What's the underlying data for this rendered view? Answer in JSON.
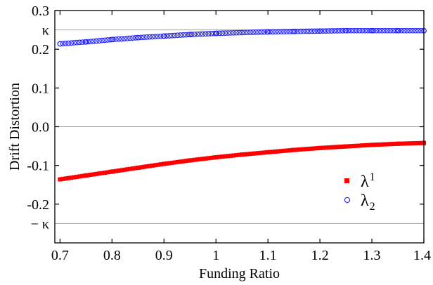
{
  "chart_data": {
    "type": "scatter",
    "title": "",
    "xlabel": "Funding Ratio",
    "ylabel": "Drift Distortion",
    "xlim": [
      0.69,
      1.4
    ],
    "ylim": [
      -0.3,
      0.3
    ],
    "x_ticks": [
      {
        "value": 0.7,
        "label": "0.7"
      },
      {
        "value": 0.8,
        "label": "0.8"
      },
      {
        "value": 0.9,
        "label": "0.9"
      },
      {
        "value": 1.0,
        "label": "1"
      },
      {
        "value": 1.1,
        "label": "1.1"
      },
      {
        "value": 1.2,
        "label": "1.2"
      },
      {
        "value": 1.3,
        "label": "1.3"
      },
      {
        "value": 1.4,
        "label": "1.4"
      }
    ],
    "y_ticks": [
      {
        "value": 0.3,
        "label": "0.3"
      },
      {
        "value": 0.2,
        "label": "0.2"
      },
      {
        "value": 0.1,
        "label": "0.1"
      },
      {
        "value": 0.0,
        "label": "0.0"
      },
      {
        "value": -0.1,
        "label": "-0.1"
      },
      {
        "value": -0.2,
        "label": "-0.2"
      }
    ],
    "reference_lines": [
      {
        "value": 0.25,
        "label": "κ"
      },
      {
        "value": 0.0,
        "label": ""
      },
      {
        "value": -0.25,
        "label": "− κ"
      }
    ],
    "legend_position": "right",
    "series": [
      {
        "name": "λ1",
        "legend_main": "λ",
        "legend_sub": "1",
        "marker": "filled-square",
        "color": "#ff0000",
        "x": [
          0.7,
          0.75,
          0.8,
          0.85,
          0.9,
          0.95,
          1.0,
          1.05,
          1.1,
          1.15,
          1.2,
          1.25,
          1.3,
          1.35,
          1.4
        ],
        "y": [
          -0.136,
          -0.126,
          -0.116,
          -0.106,
          -0.096,
          -0.087,
          -0.079,
          -0.072,
          -0.066,
          -0.06,
          -0.055,
          -0.051,
          -0.047,
          -0.044,
          -0.042
        ]
      },
      {
        "name": "λ2",
        "legend_main": "λ",
        "legend_sub": "2",
        "marker": "open-circle",
        "color": "#2020ff",
        "x": [
          0.7,
          0.75,
          0.8,
          0.85,
          0.9,
          0.95,
          1.0,
          1.05,
          1.1,
          1.15,
          1.2,
          1.25,
          1.3,
          1.35,
          1.4
        ],
        "y": [
          0.214,
          0.219,
          0.225,
          0.23,
          0.234,
          0.238,
          0.241,
          0.243,
          0.245,
          0.246,
          0.247,
          0.248,
          0.248,
          0.248,
          0.248
        ]
      }
    ]
  }
}
